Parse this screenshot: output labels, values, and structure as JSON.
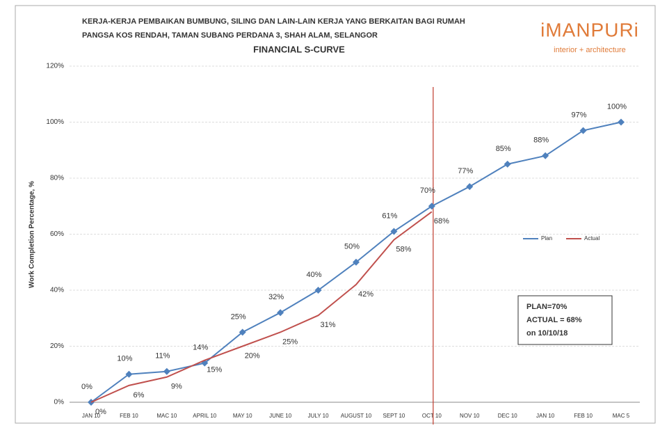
{
  "chart_data": {
    "type": "line",
    "title": "FINANCIAL S-CURVE",
    "title_lines": [
      "KERJA-KERJA PEMBAIKAN BUMBUNG, SILING DAN LAIN-LAIN KERJA YANG BERKAITAN BAGI RUMAH",
      "PANGSA KOS RENDAH, TAMAN SUBANG PERDANA 3, SHAH ALAM, SELANGOR"
    ],
    "logo": {
      "name": "iMANPURi",
      "tagline": "interior + architecture"
    },
    "y_label": "Work Completion Percentage, %",
    "categories": [
      "JAN 10",
      "FEB 10",
      "MAC 10",
      "APRIL 10",
      "MAY 10",
      "JUNE 10",
      "JULY 10",
      "AUGUST 10",
      "SEPT 10",
      "OCT 10",
      "NOV 10",
      "DEC 10",
      "JAN 10",
      "FEB 10",
      "MAC 5"
    ],
    "series": [
      {
        "name": "Plan",
        "color": "#4f81bd",
        "values": [
          0,
          10,
          11,
          14,
          25,
          32,
          40,
          50,
          61,
          70,
          77,
          85,
          88,
          97,
          100
        ],
        "value_labels": [
          "0%",
          "10%",
          "11%",
          "14%",
          "25%",
          "32%",
          "40%",
          "50%",
          "61%",
          "70%",
          "77%",
          "85%",
          "88%",
          "97%",
          "100%"
        ]
      },
      {
        "name": "Actual",
        "color": "#c0504d",
        "values": [
          0,
          6,
          9,
          15,
          20,
          25,
          31,
          42,
          58,
          68,
          null,
          null,
          null,
          null,
          null
        ],
        "value_labels": [
          "0%",
          "6%",
          "9%",
          "15%",
          "20%",
          "25%",
          "31%",
          "42%",
          "58%",
          "68%",
          null,
          null,
          null,
          null,
          null
        ]
      }
    ],
    "ylim": [
      0,
      120
    ],
    "yticks": [
      {
        "value": 0,
        "label": "0%"
      },
      {
        "value": 20,
        "label": "20%"
      },
      {
        "value": 40,
        "label": "40%"
      },
      {
        "value": 60,
        "label": "60%"
      },
      {
        "value": 80,
        "label": "80%"
      },
      {
        "value": 100,
        "label": "100%"
      },
      {
        "value": 120,
        "label": "120%"
      }
    ],
    "grid": true,
    "legend": "right",
    "vline": {
      "x": "OCT 10",
      "color": "#c0392b"
    },
    "annotation": [
      "PLAN=70%",
      "ACTUAL = 68%",
      "on 10/10/18"
    ]
  }
}
